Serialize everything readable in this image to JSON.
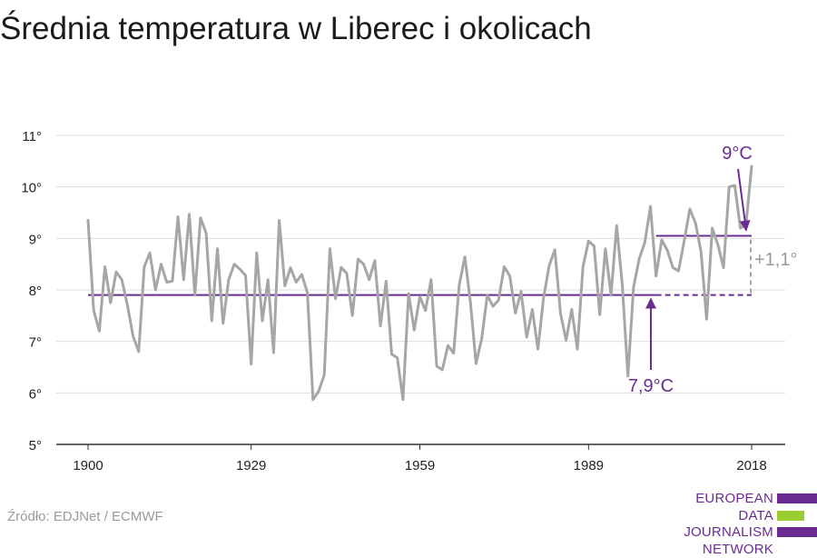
{
  "title": "Średnia temperatura w Liberec i okolicach",
  "source": "Źródło: EDJNet / ECMWF",
  "logo": {
    "lines": [
      "EUROPEAN",
      "DATA JOURNALISM",
      "NETWORK"
    ],
    "colors": {
      "purple": "#6a2c91",
      "green": "#9acd32"
    }
  },
  "colors": {
    "line": "#a6a6a6",
    "accent": "#6a2c91",
    "diff": "#a6a6a6",
    "grid": "#dddddd",
    "axis": "#333333"
  },
  "chart_data": {
    "type": "line",
    "title": "Średnia temperatura w Liberec i okolicach",
    "xlabel": "",
    "ylabel": "",
    "ylim": [
      5,
      11
    ],
    "xlim": [
      1900,
      2018
    ],
    "xticks": [
      1900,
      1929,
      1959,
      1989,
      2018
    ],
    "xtick_labels": [
      "1900",
      "1929",
      "1959",
      "1989",
      "2018"
    ],
    "yticks": [
      5,
      6,
      7,
      8,
      9,
      10,
      11
    ],
    "ytick_labels": [
      "5°",
      "6°",
      "7°",
      "8°",
      "9°",
      "10°",
      "11°"
    ],
    "grid": true,
    "x": [
      1900,
      1901,
      1902,
      1903,
      1904,
      1905,
      1906,
      1907,
      1908,
      1909,
      1910,
      1911,
      1912,
      1913,
      1914,
      1915,
      1916,
      1917,
      1918,
      1919,
      1920,
      1921,
      1922,
      1923,
      1924,
      1925,
      1926,
      1927,
      1928,
      1929,
      1930,
      1931,
      1932,
      1933,
      1934,
      1935,
      1936,
      1937,
      1938,
      1939,
      1940,
      1941,
      1942,
      1943,
      1944,
      1945,
      1946,
      1947,
      1948,
      1949,
      1950,
      1951,
      1952,
      1953,
      1954,
      1955,
      1956,
      1957,
      1958,
      1959,
      1960,
      1961,
      1962,
      1963,
      1964,
      1965,
      1966,
      1967,
      1968,
      1969,
      1970,
      1971,
      1972,
      1973,
      1974,
      1975,
      1976,
      1977,
      1978,
      1979,
      1980,
      1981,
      1982,
      1983,
      1984,
      1985,
      1986,
      1987,
      1988,
      1989,
      1990,
      1991,
      1992,
      1993,
      1994,
      1995,
      1996,
      1997,
      1998,
      1999,
      2000,
      2001,
      2002,
      2003,
      2004,
      2005,
      2006,
      2007,
      2008,
      2009,
      2010,
      2011,
      2012,
      2013,
      2014,
      2015,
      2016,
      2017,
      2018
    ],
    "values": [
      9.35,
      7.6,
      7.2,
      8.45,
      7.75,
      8.35,
      8.2,
      7.7,
      7.1,
      6.8,
      8.45,
      8.72,
      8.0,
      8.5,
      8.15,
      8.17,
      9.42,
      8.2,
      9.47,
      7.9,
      9.4,
      9.1,
      7.4,
      8.8,
      7.35,
      8.2,
      8.5,
      8.4,
      8.28,
      6.56,
      8.72,
      7.4,
      8.2,
      6.78,
      9.35,
      8.08,
      8.43,
      8.15,
      8.3,
      7.95,
      5.87,
      6.03,
      6.35,
      8.8,
      7.83,
      8.44,
      8.32,
      7.5,
      8.6,
      8.5,
      8.2,
      8.57,
      7.3,
      8.17,
      6.75,
      6.68,
      5.87,
      7.93,
      7.22,
      7.87,
      7.6,
      8.2,
      6.52,
      6.45,
      6.92,
      6.77,
      8.1,
      8.64,
      7.75,
      6.57,
      7.05,
      7.9,
      7.68,
      7.8,
      8.45,
      8.27,
      7.55,
      7.97,
      7.08,
      7.62,
      6.85,
      7.85,
      8.47,
      8.78,
      7.55,
      7.02,
      7.62,
      6.85,
      8.45,
      8.95,
      8.85,
      7.52,
      8.8,
      7.9,
      9.25,
      8.1,
      6.33,
      8.05,
      8.6,
      8.92,
      9.62,
      8.27,
      8.97,
      8.77,
      8.43,
      8.37,
      8.95,
      9.57,
      9.3,
      8.75,
      7.43,
      9.2,
      8.88,
      8.43,
      10.0,
      10.03,
      9.2,
      9.27,
      10.4
    ],
    "average_line": {
      "value": 7.9,
      "from": 1900,
      "to": 2018,
      "label": "7,9°C"
    },
    "recent_average_line": {
      "value": 9.05,
      "from": 2001,
      "to": 2018,
      "label": "9°C"
    },
    "difference_label": "+1,1°"
  }
}
